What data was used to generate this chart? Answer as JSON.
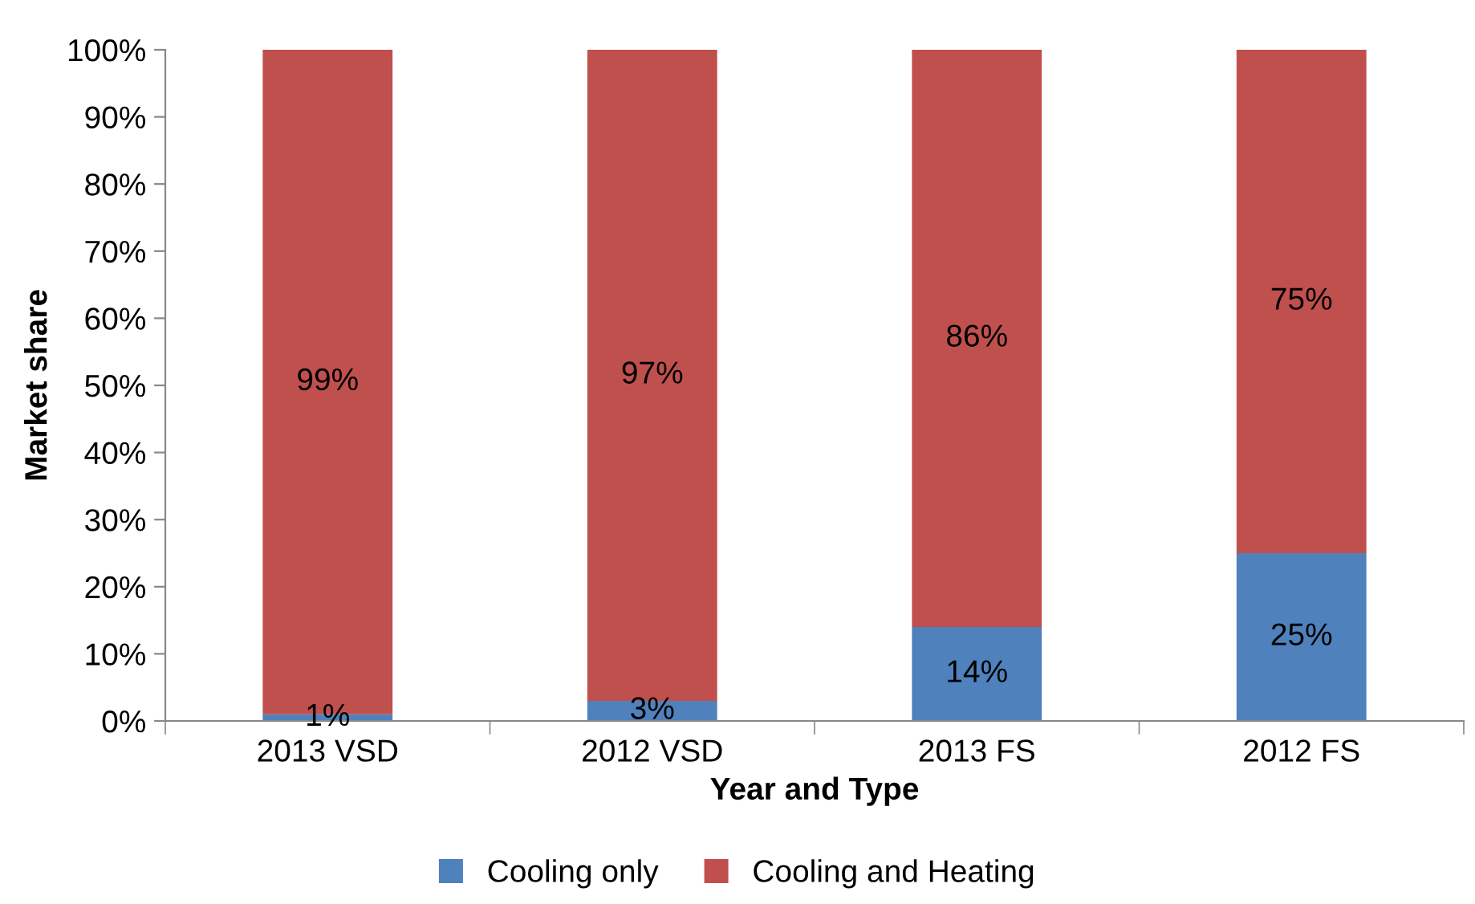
{
  "chart_data": {
    "type": "bar",
    "stacked": true,
    "xlabel": "Year and Type",
    "ylabel": "Market share",
    "categories": [
      "2013 VSD",
      "2012 VSD",
      "2013 FS",
      "2012 FS"
    ],
    "series": [
      {
        "name": "Cooling only",
        "color": "#4f81bd",
        "values": [
          1,
          3,
          14,
          25
        ],
        "value_labels": [
          "1%",
          "3%",
          "14%",
          "25%"
        ]
      },
      {
        "name": "Cooling and Heating",
        "color": "#c0504d",
        "values": [
          99,
          97,
          86,
          75
        ],
        "value_labels": [
          "99%",
          "97%",
          "86%",
          "75%"
        ]
      }
    ],
    "ylim": [
      0,
      100
    ],
    "yticks": [
      {
        "value": 0,
        "label": "0%"
      },
      {
        "value": 10,
        "label": "10%"
      },
      {
        "value": 20,
        "label": "20%"
      },
      {
        "value": 30,
        "label": "30%"
      },
      {
        "value": 40,
        "label": "40%"
      },
      {
        "value": 50,
        "label": "50%"
      },
      {
        "value": 60,
        "label": "60%"
      },
      {
        "value": 70,
        "label": "70%"
      },
      {
        "value": 80,
        "label": "80%"
      },
      {
        "value": 90,
        "label": "90%"
      },
      {
        "value": 100,
        "label": "100%"
      }
    ],
    "grid": false,
    "legend": "bottom"
  }
}
